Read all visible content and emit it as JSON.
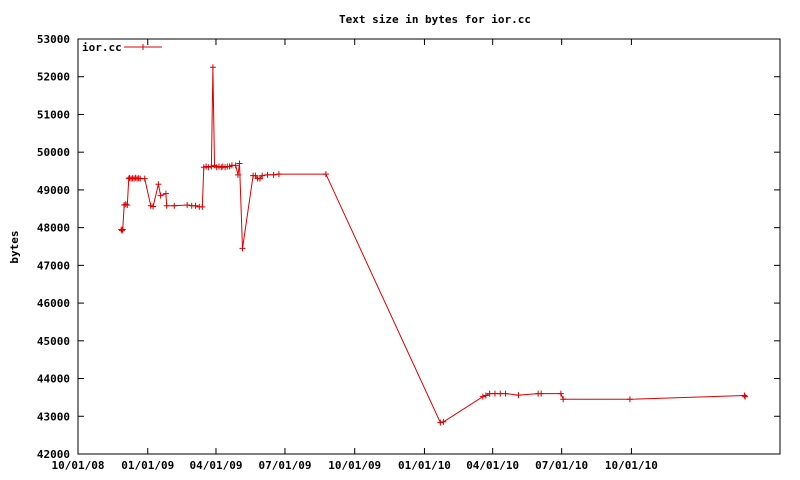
{
  "chart_data": {
    "type": "line",
    "title": "Text size in bytes for ior.cc",
    "xlabel": "",
    "ylabel": "bytes",
    "x_axis_type": "date",
    "xlim": [
      "2008-10-01",
      "2011-04-15"
    ],
    "ylim": [
      42000,
      53000
    ],
    "yticks": [
      42000,
      43000,
      44000,
      45000,
      46000,
      47000,
      48000,
      49000,
      50000,
      51000,
      52000,
      53000
    ],
    "xticks": [
      {
        "date": "2008-10-01",
        "label": "10/01/08"
      },
      {
        "date": "2009-01-01",
        "label": "01/01/09"
      },
      {
        "date": "2009-04-01",
        "label": "04/01/09"
      },
      {
        "date": "2009-07-01",
        "label": "07/01/09"
      },
      {
        "date": "2009-10-01",
        "label": "10/01/09"
      },
      {
        "date": "2010-01-01",
        "label": "01/01/10"
      },
      {
        "date": "2010-04-01",
        "label": "04/01/10"
      },
      {
        "date": "2010-07-01",
        "label": "07/01/10"
      },
      {
        "date": "2010-10-01",
        "label": "10/01/10"
      }
    ],
    "grid": false,
    "legend_position": "top-left",
    "color": "#dd0000",
    "series": [
      {
        "name": "ior.cc",
        "color": "#dd0000",
        "points": [
          [
            "2008-11-27",
            47950
          ],
          [
            "2008-11-28",
            47920
          ],
          [
            "2008-11-29",
            47950
          ],
          [
            "2008-12-01",
            48600
          ],
          [
            "2008-12-03",
            48620
          ],
          [
            "2008-12-05",
            48600
          ],
          [
            "2008-12-07",
            49300
          ],
          [
            "2008-12-08",
            49320
          ],
          [
            "2008-12-10",
            49300
          ],
          [
            "2008-12-12",
            49310
          ],
          [
            "2008-12-14",
            49300
          ],
          [
            "2008-12-16",
            49320
          ],
          [
            "2008-12-18",
            49300
          ],
          [
            "2008-12-20",
            49310
          ],
          [
            "2008-12-22",
            49300
          ],
          [
            "2008-12-28",
            49300
          ],
          [
            "2009-01-05",
            48580
          ],
          [
            "2009-01-08",
            48560
          ],
          [
            "2009-01-15",
            49150
          ],
          [
            "2009-01-18",
            48850
          ],
          [
            "2009-01-25",
            48900
          ],
          [
            "2009-01-26",
            48580
          ],
          [
            "2009-02-05",
            48580
          ],
          [
            "2009-02-22",
            48600
          ],
          [
            "2009-02-28",
            48580
          ],
          [
            "2009-03-05",
            48580
          ],
          [
            "2009-03-10",
            48550
          ],
          [
            "2009-03-14",
            48550
          ],
          [
            "2009-03-16",
            49600
          ],
          [
            "2009-03-19",
            49620
          ],
          [
            "2009-03-22",
            49600
          ],
          [
            "2009-03-26",
            49620
          ],
          [
            "2009-03-28",
            52250
          ],
          [
            "2009-03-30",
            49650
          ],
          [
            "2009-04-02",
            49600
          ],
          [
            "2009-04-05",
            49620
          ],
          [
            "2009-04-08",
            49600
          ],
          [
            "2009-04-10",
            49620
          ],
          [
            "2009-04-13",
            49600
          ],
          [
            "2009-04-16",
            49620
          ],
          [
            "2009-04-19",
            49620
          ],
          [
            "2009-04-22",
            49650
          ],
          [
            "2009-04-27",
            49650
          ],
          [
            "2009-04-30",
            49400
          ],
          [
            "2009-05-02",
            49700
          ],
          [
            "2009-05-06",
            47450
          ],
          [
            "2009-05-20",
            49380
          ],
          [
            "2009-05-23",
            49380
          ],
          [
            "2009-05-26",
            49300
          ],
          [
            "2009-05-29",
            49300
          ],
          [
            "2009-06-01",
            49380
          ],
          [
            "2009-06-08",
            49400
          ],
          [
            "2009-06-16",
            49400
          ],
          [
            "2009-06-23",
            49420
          ],
          [
            "2009-08-24",
            49420
          ],
          [
            "2010-01-22",
            42830
          ],
          [
            "2010-01-26",
            42850
          ],
          [
            "2010-03-19",
            43520
          ],
          [
            "2010-03-23",
            43550
          ],
          [
            "2010-03-28",
            43600
          ],
          [
            "2010-04-04",
            43600
          ],
          [
            "2010-04-11",
            43600
          ],
          [
            "2010-04-18",
            43600
          ],
          [
            "2010-05-05",
            43560
          ],
          [
            "2010-05-31",
            43600
          ],
          [
            "2010-06-04",
            43600
          ],
          [
            "2010-06-30",
            43600
          ],
          [
            "2010-07-03",
            43450
          ],
          [
            "2010-09-29",
            43450
          ],
          [
            "2011-02-27",
            43550
          ],
          [
            "2011-02-28",
            43520
          ]
        ]
      }
    ]
  }
}
